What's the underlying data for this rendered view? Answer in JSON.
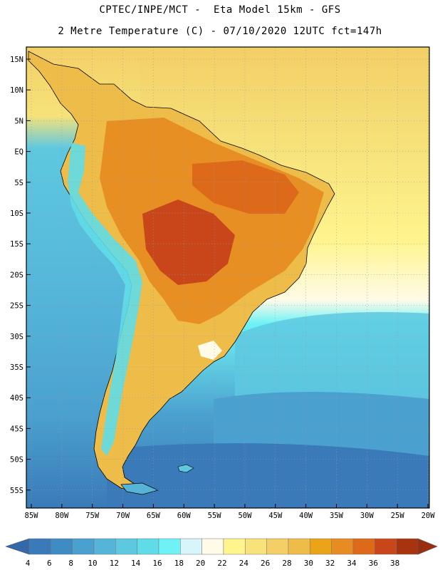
{
  "header": {
    "title_line1": "CPTEC/INPE/MCT -  Eta Model 15km - GFS",
    "title_line2": "2 Metre Temperature (C) - 07/10/2020 12UTC fct=147h"
  },
  "axes": {
    "lat_labels": [
      "15N",
      "10N",
      "5N",
      "EQ",
      "5S",
      "10S",
      "15S",
      "20S",
      "25S",
      "30S",
      "35S",
      "40S",
      "45S",
      "50S",
      "55S"
    ],
    "lon_labels": [
      "85W",
      "80W",
      "75W",
      "70W",
      "65W",
      "60W",
      "55W",
      "50W",
      "45W",
      "40W",
      "35W",
      "30W",
      "25W",
      "20W"
    ]
  },
  "colorbar": {
    "labels": [
      "4",
      "6",
      "8",
      "10",
      "12",
      "14",
      "16",
      "18",
      "20",
      "22",
      "24",
      "26",
      "28",
      "30",
      "32",
      "34",
      "36",
      "38"
    ],
    "colors": [
      "#3a7ab8",
      "#3f8cc4",
      "#4aa0cf",
      "#55b5d9",
      "#5ec8e0",
      "#60dbe8",
      "#6ef2f6",
      "#d8f5fb",
      "#fffbe8",
      "#fff48e",
      "#f8e27a",
      "#f3cf66",
      "#eebc48",
      "#eba418",
      "#e78c22",
      "#dd6a1a",
      "#c8461a",
      "#a8340f"
    ],
    "low_color": "#3468a8",
    "high_color": "#9a2f10"
  },
  "map_colors": {
    "ocean_deep": "#3a7ab8",
    "ocean_mid": "#4aa0cf",
    "ocean_light": "#5ec8e0",
    "ocean_cyan": "#6ef2f6",
    "ocean_warm": "#f6e680",
    "ocean_hot": "#f3cf66",
    "land_hot": "#c8461a",
    "land_warm": "#e78c22",
    "land_mild": "#eebc48",
    "andes": "#60dbe8"
  }
}
